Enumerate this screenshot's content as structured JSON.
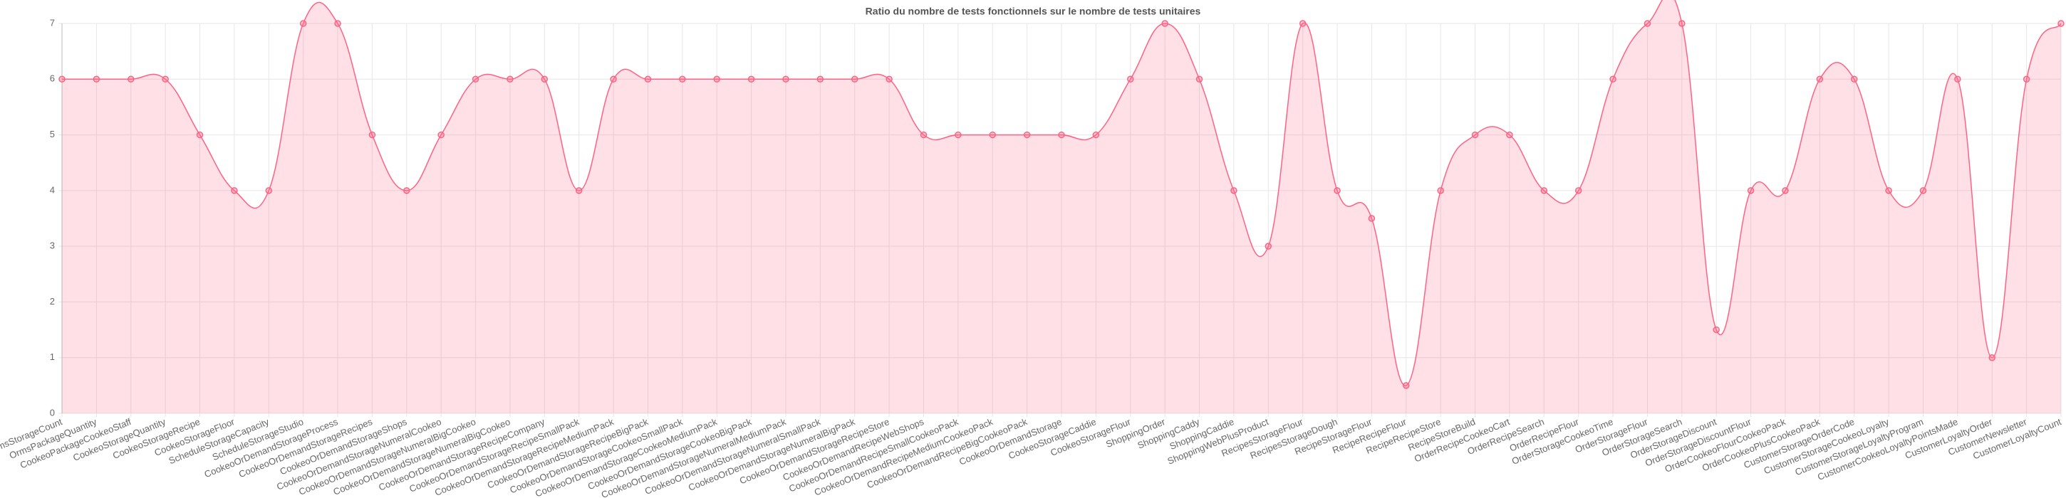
{
  "chart_data": {
    "type": "line",
    "title": "Ratio du nombre de tests fonctionnels sur le nombre de tests unitaires",
    "categories": [
      "OrmsStorageCount",
      "OrmsPackageQuantity",
      "CookeoPackageCookeoStaff",
      "CookeoStorageQuantity",
      "CookeoStorageRecipe",
      "CookeoStorageFloor",
      "ScheduleStorageCapacity",
      "ScheduleStorageStudio",
      "CookeoOrDemandStorageProcess",
      "CookeoOrDemandStorageRecipes",
      "CookeoOrDemandStorageShops",
      "CookeoOrDemandStorageNumeralCookeo",
      "CookeoOrDemandStorageNumeralBigCookeo",
      "CookeoOrDemandStorageNumeralBigCookeo",
      "CookeoOrDemandStorageRecipeCompany",
      "CookeoOrDemandStorageRecipeSmallPack",
      "CookeoOrDemandStorageRecipeMediumPack",
      "CookeoOrDemandStorageRecipeBigPack",
      "CookeoOrDemandStorageCookeoSmallPack",
      "CookeoOrDemandStorageCookeoMediumPack",
      "CookeoOrDemandStorageCookeoBigPack",
      "CookeoOrDemandStorageNumeralMediumPack",
      "CookeoOrDemandStorageNumeralSmallPack",
      "CookeoOrDemandStorageNumeralBigPack",
      "CookeoOrDemandStorageRecipeStore",
      "CookeoOrDemandRecipeWebShops",
      "CookeoOrDemandRecipeSmallCookeoPack",
      "CookeoOrDemandRecipeMediumCookeoPack",
      "CookeoOrDemandRecipeBigCookeoPack",
      "CookeoOrDemandStorage",
      "CookeoStorageCaddie",
      "CookeoStorageFlour",
      "ShoppingOrder",
      "ShoppingCaddy",
      "ShoppingCaddie",
      "ShoppingWebPlusProduct",
      "RecipesStorageFlour",
      "RecipesStorageDough",
      "RecipeStorageFlour",
      "RecipeRecipeFlour",
      "RecipeRecipeStore",
      "RecipeStoreBuild",
      "OrderRecipeCookeoCart",
      "OrderRecipeSearch",
      "OrderRecipeFlour",
      "OrderStorageCookeoTime",
      "OrderStorageFlour",
      "OrderStorageSearch",
      "OrderStorageDiscount",
      "OrderStorageDiscountFlour",
      "OrderCookeoFlourCookeoPack",
      "OrderCookeoPlusCookeoPack",
      "CustomerStorageOrderCode",
      "CustomerStorageCookeoLoyalty",
      "CustomerStorageLoyaltyProgram",
      "CustomerCookeoLoyaltyPointsMade",
      "CustomerLoyaltyOrder",
      "CustomerNewsletter",
      "CustomerLoyaltyCount"
    ],
    "series": [
      {
        "name": "Ratio",
        "color": "#ff6384",
        "values": [
          6,
          6,
          6,
          6,
          5,
          4,
          4,
          7,
          7,
          5,
          4,
          5,
          6,
          6,
          6,
          4,
          6,
          6,
          6,
          6,
          6,
          6,
          6,
          6,
          6,
          5,
          5,
          5,
          5,
          5,
          5,
          6,
          7,
          6,
          4,
          3,
          7,
          4,
          3.5,
          0.5,
          4,
          5,
          5,
          4,
          4,
          6,
          7,
          7,
          1.5,
          4,
          4,
          6,
          6,
          4,
          4,
          6,
          1,
          6,
          7
        ]
      }
    ],
    "ylim": [
      0,
      7
    ],
    "yticks": [
      0,
      1,
      2,
      3,
      4,
      5,
      6,
      7
    ],
    "grid": true
  }
}
